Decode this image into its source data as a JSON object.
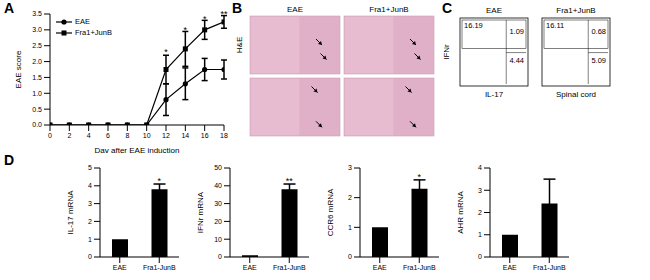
{
  "chart_data": [
    {
      "panel": "A",
      "type": "line",
      "x_label": "Day after EAE induction",
      "y_label": "EAE score",
      "x": [
        0,
        2,
        4,
        6,
        8,
        10,
        12,
        14,
        16,
        18
      ],
      "xlim": [
        0,
        18
      ],
      "xticks": [
        0,
        2,
        4,
        6,
        8,
        10,
        12,
        14,
        16,
        18
      ],
      "ylim": [
        0,
        3.5
      ],
      "yticks": [
        {
          "value": 0,
          "label": "0.0"
        },
        0.5,
        {
          "value": 1,
          "label": "1.0"
        },
        1.5,
        {
          "value": 2,
          "label": "2.0"
        },
        2.5,
        {
          "value": 3,
          "label": "3.0"
        },
        3.5
      ],
      "legend": "upper left",
      "series": [
        {
          "name": "EAE",
          "color": "#000000",
          "marker": "circle",
          "values": [
            0,
            0,
            0,
            0,
            0,
            0,
            0.8,
            1.3,
            1.75,
            1.75
          ],
          "errors": [
            0,
            0,
            0,
            0,
            0,
            0,
            0.5,
            0.5,
            0.35,
            0.3
          ]
        },
        {
          "name": "Fra1+JunB",
          "color": "#000000",
          "marker": "square",
          "values": [
            0,
            0,
            0,
            0,
            0,
            0,
            1.75,
            2.4,
            3.0,
            3.25
          ],
          "errors": [
            0,
            0,
            0,
            0,
            0,
            0,
            0.45,
            0.55,
            0.3,
            0.2
          ]
        }
      ],
      "annotations": [
        {
          "x": 12,
          "y": 2.3,
          "text": "*"
        },
        {
          "x": 14,
          "y": 3.0,
          "text": "*"
        },
        {
          "x": 16,
          "y": 3.35,
          "text": "*"
        },
        {
          "x": 18,
          "y": 3.5,
          "text": "**"
        }
      ]
    },
    {
      "panel": "B",
      "type": "image",
      "stain": "H&E",
      "columns": [
        "EAE",
        "Fra1+JunB"
      ]
    },
    {
      "panel": "C",
      "type": "flow",
      "note": "Spinal cord",
      "x_label": "IL-17",
      "y_label": "IFNr",
      "plots": [
        {
          "title": "EAE",
          "upper_left": 16.19,
          "upper_right": 1.09,
          "lower_right": 4.44
        },
        {
          "title": "Fra1+JunB",
          "upper_left": 16.11,
          "upper_right": 0.68,
          "lower_right": 5.09
        }
      ]
    },
    {
      "panel": "D",
      "type": "bar",
      "y_label": "IL-17 mRNA",
      "categories": [
        "EAE",
        "Fra1-JunB"
      ],
      "values": [
        1,
        3.8
      ],
      "errors": [
        0,
        0.3
      ],
      "color": "#000000",
      "ylim": [
        0,
        5
      ],
      "yticks": [
        0,
        1,
        2,
        3,
        4,
        5
      ],
      "annotations": [
        {
          "category": "Fra1-JunB",
          "y": 4.3,
          "text": "*"
        }
      ]
    },
    {
      "type": "bar",
      "y_label": "IFNr mRNA",
      "categories": [
        "EAE",
        "Fra1-JunB"
      ],
      "values": [
        1,
        38
      ],
      "errors": [
        0,
        3
      ],
      "color": "#000000",
      "ylim": [
        0,
        50
      ],
      "yticks": [
        0,
        10,
        20,
        30,
        40,
        50
      ],
      "annotations": [
        {
          "category": "Fra1-JunB",
          "y": 43,
          "text": "**"
        }
      ]
    },
    {
      "type": "bar",
      "y_label": "CCR6 mRNA",
      "categories": [
        "EAE",
        "Fra1-JunB"
      ],
      "values": [
        1,
        2.3
      ],
      "errors": [
        0,
        0.3
      ],
      "color": "#000000",
      "ylim": [
        0,
        3
      ],
      "yticks": [
        0,
        1,
        2,
        3
      ],
      "annotations": [
        {
          "category": "Fra1-JunB",
          "y": 2.7,
          "text": "*"
        }
      ]
    },
    {
      "type": "bar",
      "y_label": "AHR mRNA",
      "categories": [
        "EAE",
        "Fra1-JunB"
      ],
      "values": [
        1,
        2.4
      ],
      "errors": [
        0,
        1.1
      ],
      "color": "#000000",
      "ylim": [
        0,
        4
      ],
      "yticks": [
        0,
        1,
        2,
        3,
        4
      ]
    }
  ]
}
